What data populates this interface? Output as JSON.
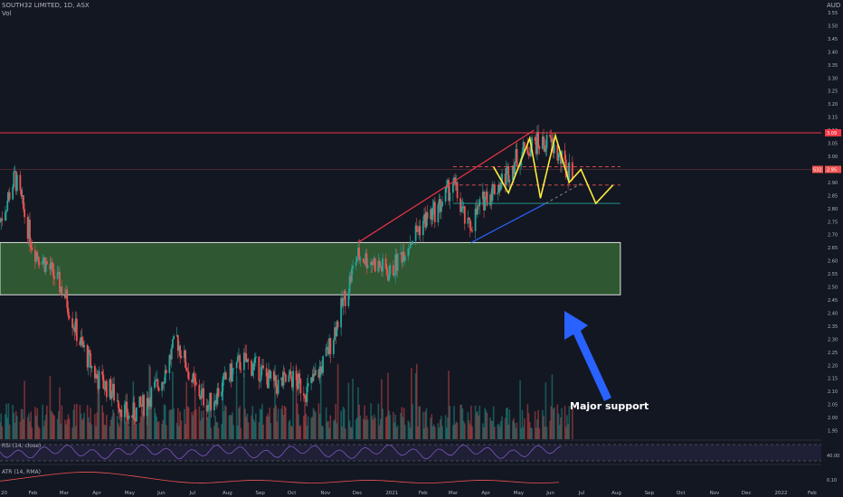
{
  "header": {
    "symbol": "SOUTH32 LIMITED, 1D, ASX",
    "volume_label": "Vol"
  },
  "price_axis": {
    "currency": "AUD",
    "ticks": [
      "3.55",
      "3.50",
      "3.45",
      "3.40",
      "3.35",
      "3.30",
      "3.25",
      "3.20",
      "3.15",
      "3.10",
      "3.05",
      "3.00",
      "2.95",
      "2.90",
      "2.85",
      "2.80",
      "2.75",
      "2.70",
      "2.65",
      "2.60",
      "2.55",
      "2.50",
      "2.45",
      "2.40",
      "2.35",
      "2.30",
      "2.25",
      "2.20",
      "2.15",
      "2.10",
      "2.05",
      "2.00",
      "1.95"
    ],
    "badge_resistance": "3.09",
    "badge_symbol": "S32",
    "badge_last": "2.95"
  },
  "time_axis": {
    "labels": [
      "20",
      "Feb",
      "Mar",
      "Apr",
      "May",
      "Jun",
      "Jul",
      "Aug",
      "Sep",
      "Oct",
      "Nov",
      "Dec",
      "2021",
      "Feb",
      "Mar",
      "Apr",
      "May",
      "Jun",
      "Jul",
      "Aug",
      "Sep",
      "Oct",
      "Nov",
      "Dec",
      "2022",
      "Feb"
    ]
  },
  "annotation": {
    "text": "Major support"
  },
  "rsi": {
    "label": "RSI (14, close)",
    "value": "40.00"
  },
  "atr": {
    "label": "ATR (14, RMA)",
    "value": "0.10"
  },
  "colors": {
    "up": "#26a69a",
    "down": "#ef5350",
    "support_zone": "#2e5732",
    "resistance": "#f23645",
    "projection": "#ffeb3b",
    "arrow": "#2962ff",
    "rsi_line": "#7e57c2",
    "background": "#131722"
  },
  "chart_data": {
    "type": "candlestick",
    "title": "SOUTH32 LIMITED, 1D, ASX",
    "currency": "AUD",
    "ylim": [
      1.93,
      3.57
    ],
    "x_range": [
      "2020-01-01",
      "2022-02-28"
    ],
    "resistance_level": 3.09,
    "last_price": 2.95,
    "support_zone": {
      "low": 2.47,
      "high": 2.67,
      "from": "2020-01-01",
      "to": "2021-08-05"
    },
    "trendlines": [
      {
        "name": "rising resistance",
        "from": [
          "2020-12-02",
          2.67
        ],
        "to": [
          "2021-05-16",
          3.1
        ]
      },
      {
        "name": "rising support",
        "from": [
          "2021-03-18",
          2.67
        ],
        "to": [
          "2021-05-27",
          2.82
        ]
      }
    ],
    "horizontal_levels": [
      2.82,
      2.89,
      2.96
    ],
    "projection_path": [
      [
        "2021-04-08",
        2.96
      ],
      [
        "2021-04-22",
        2.86
      ],
      [
        "2021-05-12",
        3.07
      ],
      [
        "2021-05-22",
        2.84
      ],
      [
        "2021-06-05",
        3.08
      ],
      [
        "2021-06-18",
        2.9
      ],
      [
        "2021-06-29",
        2.95
      ],
      [
        "2021-07-13",
        2.82
      ],
      [
        "2021-07-29",
        2.89
      ]
    ],
    "ohlc_approx": {
      "dates": [
        "2020-01-01",
        "2020-01-15",
        "2020-02-01",
        "2020-02-15",
        "2020-03-01",
        "2020-03-15",
        "2020-04-01",
        "2020-04-15",
        "2020-05-01",
        "2020-05-15",
        "2020-06-01",
        "2020-06-15",
        "2020-07-01",
        "2020-07-15",
        "2020-08-01",
        "2020-08-15",
        "2020-09-01",
        "2020-09-15",
        "2020-10-01",
        "2020-10-15",
        "2020-11-01",
        "2020-11-15",
        "2020-12-01",
        "2020-12-15",
        "2021-01-01",
        "2021-01-15",
        "2021-02-01",
        "2021-02-15",
        "2021-03-01",
        "2021-03-15",
        "2021-04-01",
        "2021-04-15",
        "2021-05-01",
        "2021-05-15",
        "2021-06-01",
        "2021-06-15"
      ],
      "close": [
        2.75,
        2.92,
        2.65,
        2.58,
        2.48,
        2.3,
        2.15,
        2.1,
        2.0,
        2.05,
        2.15,
        2.3,
        2.12,
        2.05,
        2.15,
        2.22,
        2.18,
        2.12,
        2.15,
        2.1,
        2.22,
        2.4,
        2.62,
        2.6,
        2.55,
        2.65,
        2.75,
        2.8,
        2.9,
        2.72,
        2.85,
        2.9,
        3.0,
        3.05,
        3.05,
        2.95
      ]
    },
    "indicators": [
      "Vol",
      "RSI (14, close)",
      "ATR (14, RMA)"
    ]
  }
}
